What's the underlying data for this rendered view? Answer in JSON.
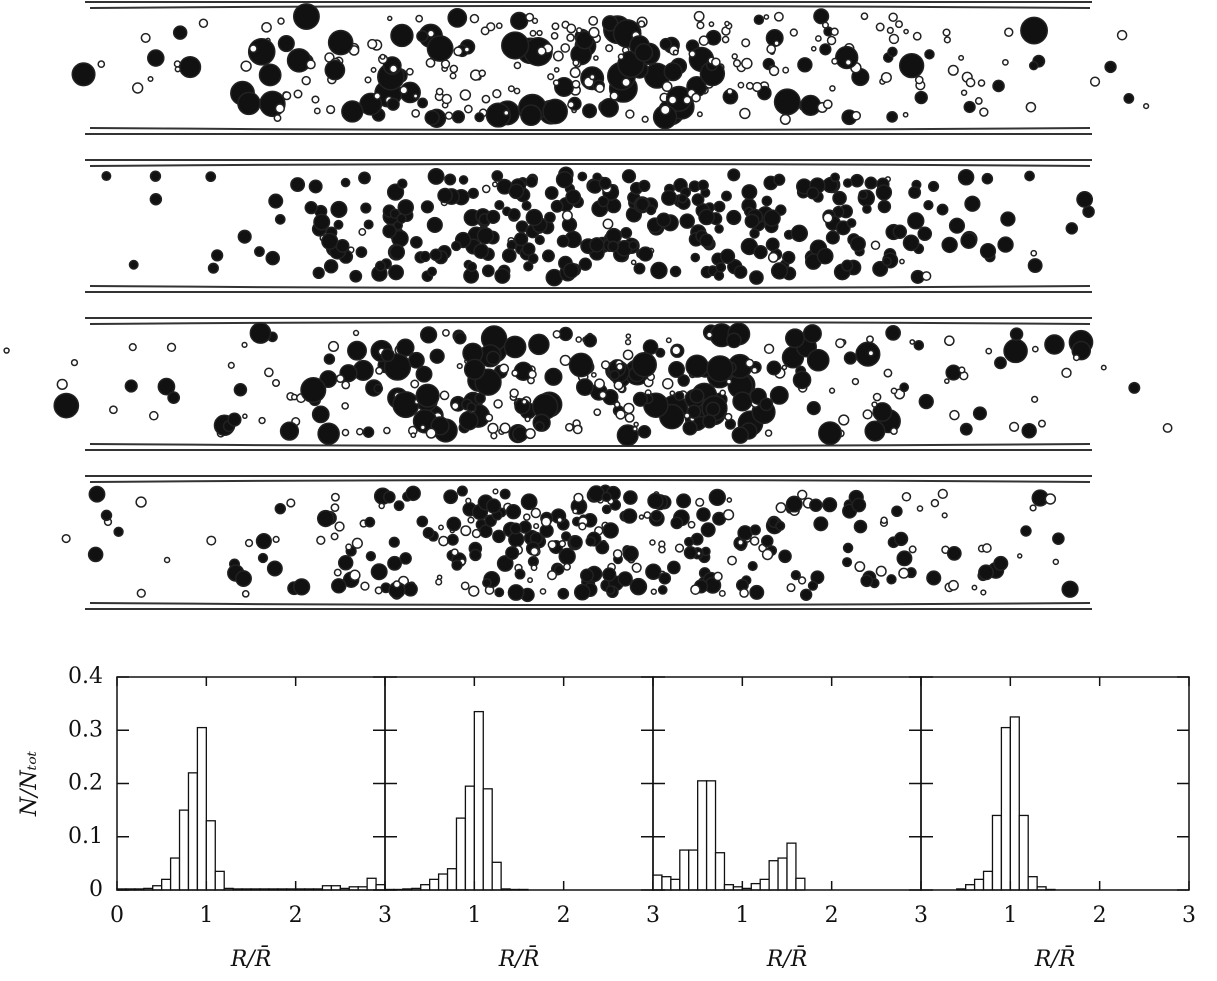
{
  "chart_data": [
    {
      "type": "histogram",
      "xlabel": "R/R̄",
      "ylabel": "N/Nₜₒₜ",
      "bins": [
        0,
        0.1,
        0.2,
        0.3,
        0.4,
        0.5,
        0.6,
        0.7,
        0.8,
        0.9,
        1,
        1.1,
        1.2,
        1.3,
        1.4,
        1.5,
        1.6,
        1.7,
        1.8,
        1.9,
        2,
        2.1,
        2.2,
        2.3,
        2.4,
        2.5,
        2.6,
        2.7,
        2.8,
        2.9,
        3
      ],
      "values": [
        0.002,
        0.002,
        0.002,
        0.003,
        0.008,
        0.02,
        0.06,
        0.15,
        0.22,
        0.305,
        0.13,
        0.035,
        0.003,
        0.002,
        0.002,
        0.002,
        0.002,
        0.002,
        0.002,
        0.002,
        0.002,
        0.002,
        0.002,
        0.008,
        0.008,
        0.003,
        0.006,
        0.006,
        0.022,
        0.01
      ],
      "xlim": [
        0,
        3
      ],
      "xticks": [
        0,
        1,
        2,
        3
      ],
      "ylim": [
        0,
        0.4
      ],
      "yticks": [
        0,
        0.1,
        0.2,
        0.3,
        0.4
      ],
      "color": "#ffffff"
    },
    {
      "type": "histogram",
      "xlabel": "R/R̄",
      "bins": [
        0,
        0.1,
        0.2,
        0.3,
        0.4,
        0.5,
        0.6,
        0.7,
        0.8,
        0.9,
        1,
        1.1,
        1.2,
        1.3,
        1.4,
        1.5,
        1.6,
        1.7,
        1.8,
        1.9,
        2,
        2.1,
        2.2,
        2.3,
        2.4,
        2.5,
        2.6,
        2.7,
        2.8,
        2.9,
        3
      ],
      "values": [
        0.001,
        0.001,
        0.002,
        0.003,
        0.01,
        0.02,
        0.03,
        0.04,
        0.135,
        0.195,
        0.335,
        0.19,
        0.052,
        0.002,
        0.001,
        0.001,
        0,
        0,
        0,
        0,
        0,
        0,
        0,
        0,
        0,
        0,
        0,
        0,
        0,
        0
      ],
      "xlim": [
        0,
        3
      ],
      "xticks": [
        1,
        2,
        3
      ],
      "ylim": [
        0,
        0.4
      ],
      "color": "#ffffff"
    },
    {
      "type": "histogram",
      "xlabel": "R/R̄",
      "bins": [
        0,
        0.1,
        0.2,
        0.3,
        0.4,
        0.5,
        0.6,
        0.7,
        0.8,
        0.9,
        1,
        1.1,
        1.2,
        1.3,
        1.4,
        1.5,
        1.6,
        1.7,
        1.8,
        1.9,
        2,
        2.1,
        2.2,
        2.3,
        2.4,
        2.5,
        2.6,
        2.7,
        2.8,
        2.9,
        3
      ],
      "values": [
        0.028,
        0.025,
        0.02,
        0.075,
        0.075,
        0.205,
        0.205,
        0.07,
        0.01,
        0.006,
        0.003,
        0.012,
        0.02,
        0.055,
        0.06,
        0.088,
        0.022,
        0,
        0,
        0,
        0,
        0,
        0,
        0,
        0,
        0,
        0,
        0,
        0,
        0
      ],
      "xlim": [
        0,
        3
      ],
      "xticks": [
        1,
        2,
        3
      ],
      "ylim": [
        0,
        0.4
      ],
      "color": "#ffffff"
    },
    {
      "type": "histogram",
      "xlabel": "R/R̄",
      "bins": [
        0,
        0.1,
        0.2,
        0.3,
        0.4,
        0.5,
        0.6,
        0.7,
        0.8,
        0.9,
        1,
        1.1,
        1.2,
        1.3,
        1.4,
        1.5,
        1.6,
        1.7,
        1.8,
        1.9,
        2,
        2.1,
        2.2,
        2.3,
        2.4,
        2.5,
        2.6,
        2.7,
        2.8,
        2.9,
        3
      ],
      "values": [
        0,
        0,
        0,
        0,
        0.002,
        0.01,
        0.02,
        0.035,
        0.14,
        0.305,
        0.325,
        0.14,
        0.025,
        0.006,
        0.001,
        0,
        0,
        0,
        0,
        0,
        0,
        0,
        0,
        0,
        0,
        0,
        0,
        0,
        0,
        0
      ],
      "xlim": [
        0,
        3
      ],
      "xticks": [
        1,
        2,
        3
      ],
      "ylim": [
        0,
        0.4
      ],
      "color": "#ffffff"
    }
  ]
}
